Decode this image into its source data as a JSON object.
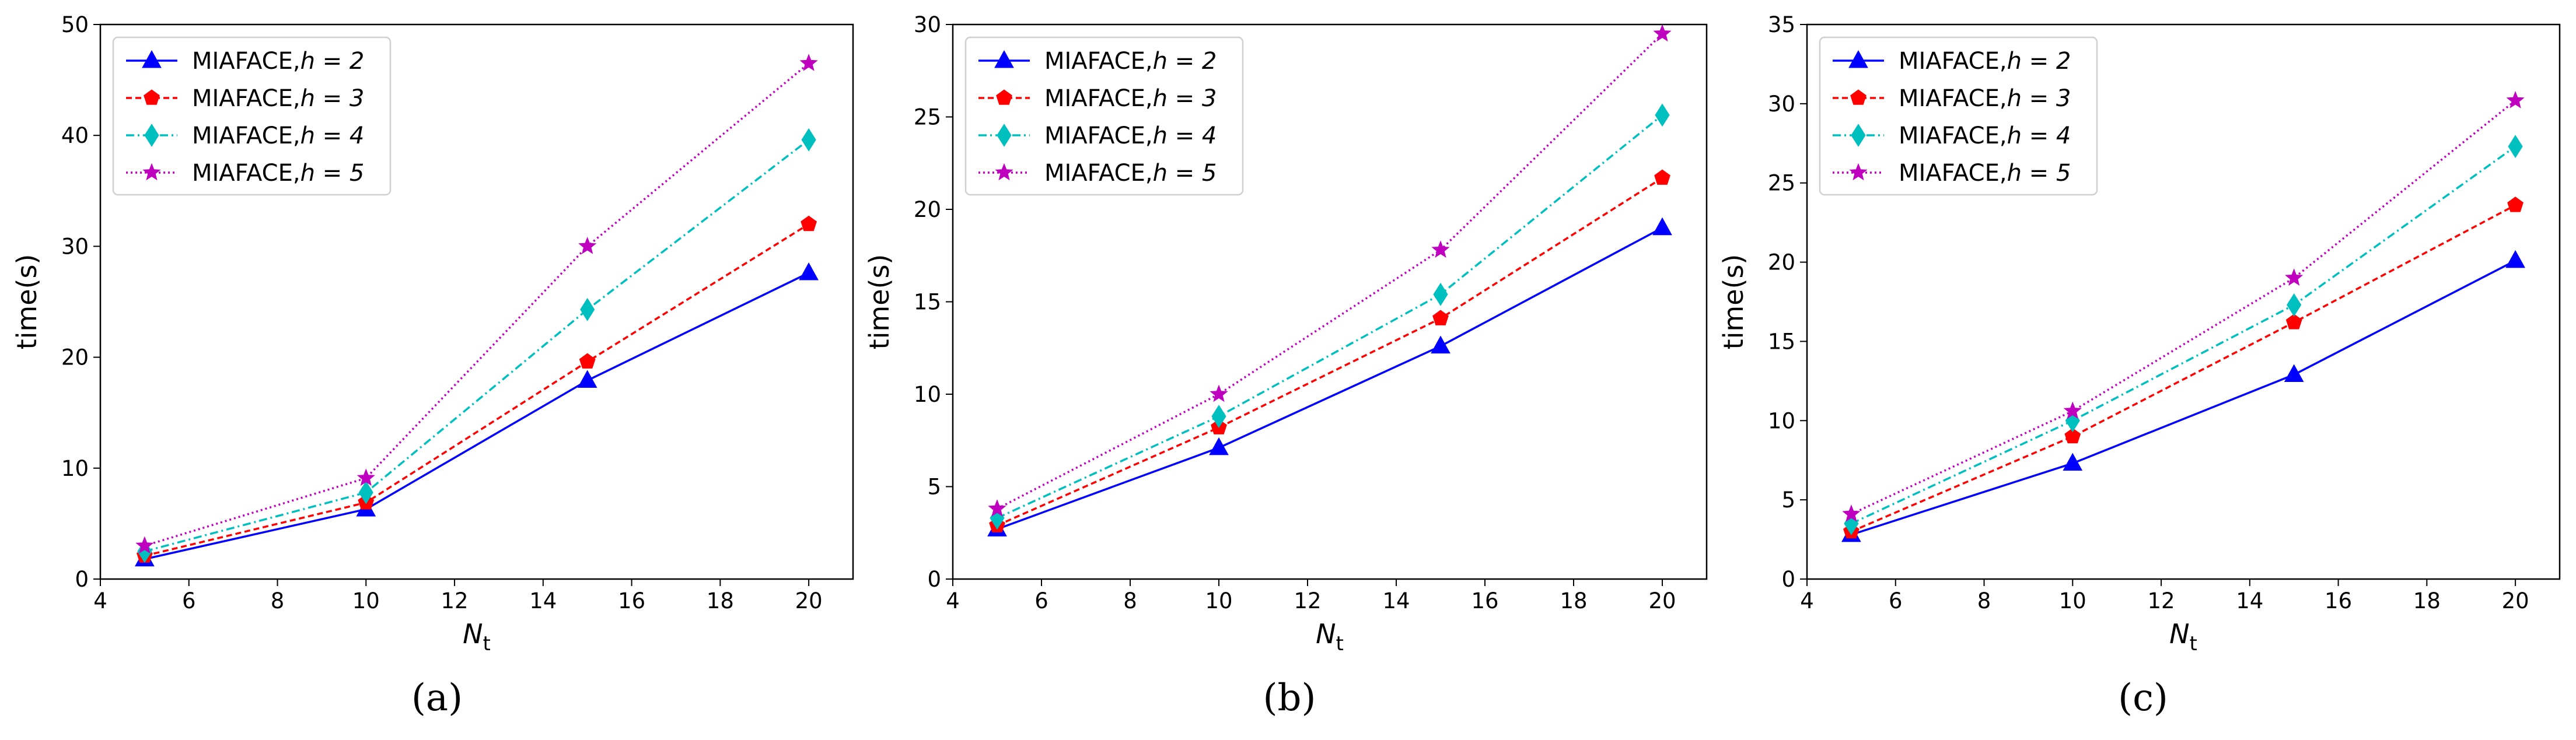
{
  "chart_data": [
    {
      "type": "line",
      "panel_label": "(a)",
      "xlabel": "N",
      "xlabel_sub": "t",
      "ylabel": "time(s)",
      "xlim": [
        4,
        21
      ],
      "ylim": [
        0,
        50
      ],
      "xticks": [
        4,
        6,
        8,
        10,
        12,
        14,
        16,
        18,
        20
      ],
      "yticks": [
        0,
        10,
        20,
        30,
        40,
        50
      ],
      "x": [
        5,
        10,
        15,
        20
      ],
      "legend_position": "top-left",
      "series": [
        {
          "name": "MIAFACE,",
          "h": "h = 2",
          "values": [
            1.8,
            6.3,
            17.9,
            27.6
          ],
          "color": "#0000ff",
          "dash": "",
          "marker": "triangle"
        },
        {
          "name": "MIAFACE,",
          "h": "h = 3",
          "values": [
            2.1,
            6.9,
            19.6,
            32.0
          ],
          "color": "#ff0000",
          "dash": "10,6",
          "marker": "pentagon"
        },
        {
          "name": "MIAFACE,",
          "h": "h = 4",
          "values": [
            2.5,
            7.8,
            24.3,
            39.6
          ],
          "color": "#00bfbf",
          "dash": "14,6,3,6",
          "marker": "diamond"
        },
        {
          "name": "MIAFACE,",
          "h": "h = 5",
          "values": [
            3.0,
            9.1,
            30.0,
            46.5
          ],
          "color": "#bf00bf",
          "dash": "3,5",
          "marker": "star"
        }
      ]
    },
    {
      "type": "line",
      "panel_label": "(b)",
      "xlabel": "N",
      "xlabel_sub": "t",
      "ylabel": "time(s)",
      "xlim": [
        4,
        21
      ],
      "ylim": [
        0,
        30
      ],
      "xticks": [
        4,
        6,
        8,
        10,
        12,
        14,
        16,
        18,
        20
      ],
      "yticks": [
        0,
        5,
        10,
        15,
        20,
        25,
        30
      ],
      "x": [
        5,
        10,
        15,
        20
      ],
      "legend_position": "top-left",
      "series": [
        {
          "name": "MIAFACE,",
          "h": "h = 2",
          "values": [
            2.7,
            7.1,
            12.6,
            19.0
          ],
          "color": "#0000ff",
          "dash": "",
          "marker": "triangle"
        },
        {
          "name": "MIAFACE,",
          "h": "h = 3",
          "values": [
            2.9,
            8.2,
            14.1,
            21.7
          ],
          "color": "#ff0000",
          "dash": "10,6",
          "marker": "pentagon"
        },
        {
          "name": "MIAFACE,",
          "h": "h = 4",
          "values": [
            3.3,
            8.8,
            15.4,
            25.1
          ],
          "color": "#00bfbf",
          "dash": "14,6,3,6",
          "marker": "diamond"
        },
        {
          "name": "MIAFACE,",
          "h": "h = 5",
          "values": [
            3.8,
            10.0,
            17.8,
            29.5
          ],
          "color": "#bf00bf",
          "dash": "3,5",
          "marker": "star"
        }
      ]
    },
    {
      "type": "line",
      "panel_label": "(c)",
      "xlabel": "N",
      "xlabel_sub": "t",
      "ylabel": "time(s)",
      "xlim": [
        4,
        21
      ],
      "ylim": [
        0,
        35
      ],
      "xticks": [
        4,
        6,
        8,
        10,
        12,
        14,
        16,
        18,
        20
      ],
      "yticks": [
        0,
        5,
        10,
        15,
        20,
        25,
        30,
        35
      ],
      "x": [
        5,
        10,
        15,
        20
      ],
      "legend_position": "top-left",
      "series": [
        {
          "name": "MIAFACE,",
          "h": "h = 2",
          "values": [
            2.8,
            7.3,
            12.9,
            20.1
          ],
          "color": "#0000ff",
          "dash": "",
          "marker": "triangle"
        },
        {
          "name": "MIAFACE,",
          "h": "h = 3",
          "values": [
            3.0,
            9.0,
            16.2,
            23.6
          ],
          "color": "#ff0000",
          "dash": "10,6",
          "marker": "pentagon"
        },
        {
          "name": "MIAFACE,",
          "h": "h = 4",
          "values": [
            3.5,
            10.0,
            17.3,
            27.3
          ],
          "color": "#00bfbf",
          "dash": "14,6,3,6",
          "marker": "diamond"
        },
        {
          "name": "MIAFACE,",
          "h": "h = 5",
          "values": [
            4.1,
            10.6,
            19.0,
            30.2
          ],
          "color": "#bf00bf",
          "dash": "3,5",
          "marker": "star"
        }
      ]
    }
  ]
}
